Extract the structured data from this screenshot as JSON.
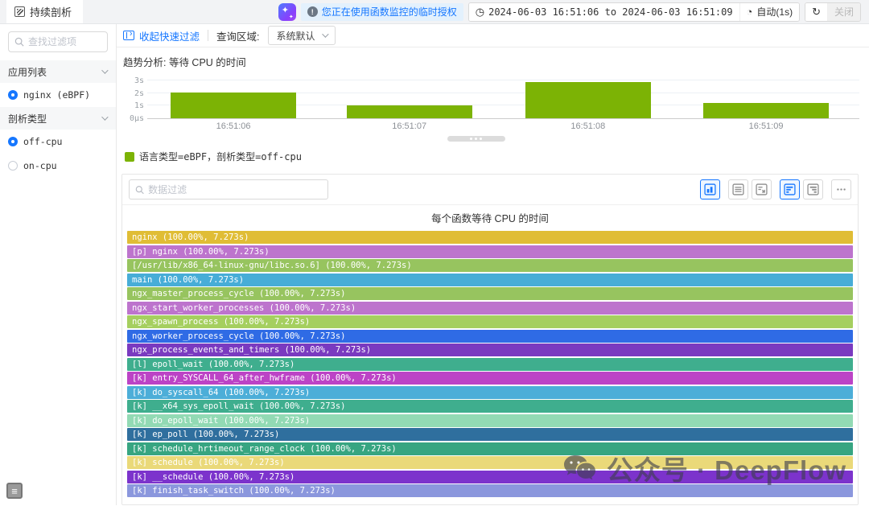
{
  "topbar": {
    "tab_label": "持续剖析",
    "notice": "您正在使用函数监控的临时授权",
    "time_range": "2024-06-03 16:51:06 to 2024-06-03 16:51:09",
    "auto_refresh": "自动(1s)",
    "close_label": "关闭",
    "accent_color": "#1677ff"
  },
  "sidebar": {
    "search_placeholder": "查找过滤项",
    "sections": [
      {
        "label": "应用列表",
        "items": [
          {
            "label": "nginx (eBPF)",
            "selected": true
          }
        ]
      },
      {
        "label": "剖析类型",
        "items": [
          {
            "label": "off-cpu",
            "selected": true
          },
          {
            "label": "on-cpu",
            "selected": false
          }
        ]
      }
    ]
  },
  "quickfilter": {
    "collapse_label": "收起快速过滤",
    "query_region_label": "查询区域:",
    "region_value": "系统默认"
  },
  "datapanel": {
    "search_placeholder": "数据过滤",
    "view_buttons": [
      {
        "name": "chart-view-button",
        "icon": "chart-icon",
        "active": true,
        "gap": false
      },
      {
        "name": "table-view-button",
        "icon": "rows-icon",
        "active": false,
        "gap": true
      },
      {
        "name": "pivot-view-button",
        "icon": "pivot-icon",
        "active": false,
        "gap": false
      },
      {
        "name": "flame-align-left-button",
        "icon": "align-left-icon",
        "active": true,
        "gap": true
      },
      {
        "name": "flame-align-right-button",
        "icon": "align-right-icon",
        "active": false,
        "gap": false
      },
      {
        "name": "more-options-button",
        "icon": "ellipsis-icon",
        "active": false,
        "gap": true
      }
    ]
  },
  "watermark": {
    "text": "公众号 · DeepFlow"
  },
  "chart_data": [
    {
      "type": "bar",
      "title": "趋势分析: 等待 CPU 的时间",
      "categories": [
        "16:51:06",
        "16:51:07",
        "16:51:08",
        "16:51:09"
      ],
      "values": [
        2.05,
        1.05,
        2.9,
        1.2
      ],
      "unit": "s",
      "ylim": [
        0,
        3
      ],
      "yticks": [
        "0µs",
        "1s",
        "2s",
        "3s"
      ],
      "grid": true,
      "bar_color": "#7CB305",
      "legend": [
        "语言类型=eBPF，剖析类型=off-cpu"
      ],
      "legend_position": "bottom-left",
      "layout": {
        "bar_centers_pct": [
          12.1,
          36.8,
          61.9,
          86.9
        ],
        "bar_width_pct": 17.6
      }
    },
    {
      "type": "flame",
      "title": "每个函数等待 CPU 的时间",
      "rows": [
        {
          "name": "nginx",
          "pct": 100.0,
          "time_s": 7.273,
          "color": "#e0bd35"
        },
        {
          "name": "[p] nginx",
          "pct": 100.0,
          "time_s": 7.273,
          "color": "#bd74cd"
        },
        {
          "name": "[/usr/lib/x86_64-linux-gnu/libc.so.6]",
          "pct": 100.0,
          "time_s": 7.273,
          "color": "#97c45f"
        },
        {
          "name": "main",
          "pct": 100.0,
          "time_s": 7.273,
          "color": "#47add7"
        },
        {
          "name": "ngx_master_process_cycle",
          "pct": 100.0,
          "time_s": 7.273,
          "color": "#97c45f"
        },
        {
          "name": "ngx_start_worker_processes",
          "pct": 100.0,
          "time_s": 7.273,
          "color": "#bd74cd"
        },
        {
          "name": "ngx_spawn_process",
          "pct": 100.0,
          "time_s": 7.273,
          "color": "#a5cf5f"
        },
        {
          "name": "ngx_worker_process_cycle",
          "pct": 100.0,
          "time_s": 7.273,
          "color": "#2f6be5"
        },
        {
          "name": "ngx_process_events_and_timers",
          "pct": 100.0,
          "time_s": 7.273,
          "color": "#7a3ac0"
        },
        {
          "name": "[l] epoll_wait",
          "pct": 100.0,
          "time_s": 7.273,
          "color": "#3fae8e"
        },
        {
          "name": "[k] entry_SYSCALL_64_after_hwframe",
          "pct": 100.0,
          "time_s": 7.273,
          "color": "#bc43c6"
        },
        {
          "name": "[k] do_syscall_64",
          "pct": 100.0,
          "time_s": 7.273,
          "color": "#4caed8"
        },
        {
          "name": "[k] __x64_sys_epoll_wait",
          "pct": 100.0,
          "time_s": 7.273,
          "color": "#3fae8e"
        },
        {
          "name": "[k] do_epoll_wait",
          "pct": 100.0,
          "time_s": 7.273,
          "color": "#92dab4"
        },
        {
          "name": "[k] ep_poll",
          "pct": 100.0,
          "time_s": 7.273,
          "color": "#2f6f9e"
        },
        {
          "name": "[k] schedule_hrtimeout_range_clock",
          "pct": 100.0,
          "time_s": 7.273,
          "color": "#37a581"
        },
        {
          "name": "[k] schedule",
          "pct": 100.0,
          "time_s": 7.273,
          "color": "#ead979"
        },
        {
          "name": "[k] __schedule",
          "pct": 100.0,
          "time_s": 7.273,
          "color": "#7c33cc"
        },
        {
          "name": "[k] finish_task_switch",
          "pct": 100.0,
          "time_s": 7.273,
          "color": "#8b97dd"
        }
      ]
    }
  ]
}
